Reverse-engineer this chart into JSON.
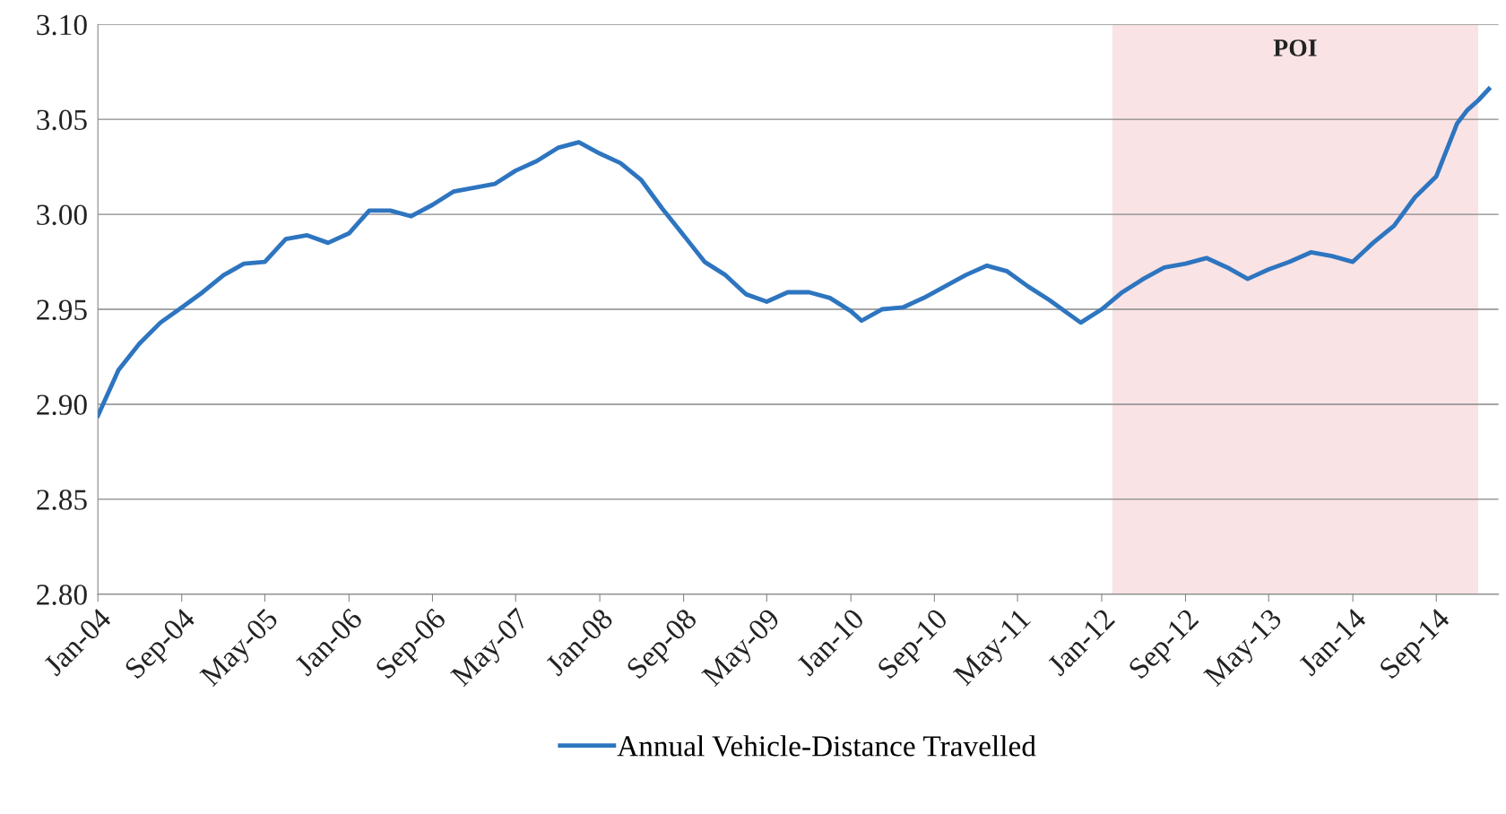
{
  "chart_data": {
    "type": "line",
    "x": [
      "2004-01",
      "2004-03",
      "2004-05",
      "2004-07",
      "2004-09",
      "2004-11",
      "2005-01",
      "2005-03",
      "2005-05",
      "2005-07",
      "2005-09",
      "2005-11",
      "2006-01",
      "2006-03",
      "2006-05",
      "2006-07",
      "2006-09",
      "2006-11",
      "2007-01",
      "2007-03",
      "2007-05",
      "2007-07",
      "2007-09",
      "2007-11",
      "2008-01",
      "2008-03",
      "2008-05",
      "2008-07",
      "2008-09",
      "2008-11",
      "2009-01",
      "2009-03",
      "2009-05",
      "2009-07",
      "2009-09",
      "2009-11",
      "2010-01",
      "2010-02",
      "2010-04",
      "2010-06",
      "2010-08",
      "2010-10",
      "2010-12",
      "2011-02",
      "2011-04",
      "2011-06",
      "2011-08",
      "2011-10",
      "2011-11",
      "2012-01",
      "2012-03",
      "2012-05",
      "2012-07",
      "2012-09",
      "2012-11",
      "2013-01",
      "2013-03",
      "2013-05",
      "2013-07",
      "2013-09",
      "2013-11",
      "2014-01",
      "2014-03",
      "2014-05",
      "2014-07",
      "2014-09",
      "2014-11",
      "2014-12",
      "2015-01",
      "2015-02"
    ],
    "series": [
      {
        "name": "Annual Vehicle-Distance Travelled",
        "color": "#2e75c0",
        "values": [
          2.894,
          2.918,
          2.932,
          2.943,
          2.951,
          2.959,
          2.968,
          2.974,
          2.975,
          2.987,
          2.989,
          2.985,
          2.99,
          3.002,
          3.002,
          2.999,
          3.005,
          3.012,
          3.014,
          3.016,
          3.023,
          3.028,
          3.035,
          3.038,
          3.032,
          3.027,
          3.018,
          3.003,
          2.989,
          2.975,
          2.968,
          2.958,
          2.954,
          2.959,
          2.959,
          2.956,
          2.949,
          2.944,
          2.95,
          2.951,
          2.956,
          2.962,
          2.968,
          2.973,
          2.97,
          2.962,
          2.955,
          2.947,
          2.943,
          2.95,
          2.959,
          2.966,
          2.972,
          2.974,
          2.977,
          2.972,
          2.966,
          2.971,
          2.975,
          2.98,
          2.978,
          2.975,
          2.985,
          2.994,
          3.009,
          3.02,
          3.048,
          3.055,
          3.06,
          3.066
        ]
      }
    ],
    "xlim": [
      "2004-01",
      "2015-03"
    ],
    "xticks": [
      {
        "value": "2004-01",
        "label": "Jan-04"
      },
      {
        "value": "2004-09",
        "label": "Sep-04"
      },
      {
        "value": "2005-05",
        "label": "May-05"
      },
      {
        "value": "2006-01",
        "label": "Jan-06"
      },
      {
        "value": "2006-09",
        "label": "Sep-06"
      },
      {
        "value": "2007-05",
        "label": "May-07"
      },
      {
        "value": "2008-01",
        "label": "Jan-08"
      },
      {
        "value": "2008-09",
        "label": "Sep-08"
      },
      {
        "value": "2009-05",
        "label": "May-09"
      },
      {
        "value": "2010-01",
        "label": "Jan-10"
      },
      {
        "value": "2010-09",
        "label": "Sep-10"
      },
      {
        "value": "2011-05",
        "label": "May-11"
      },
      {
        "value": "2012-01",
        "label": "Jan-12"
      },
      {
        "value": "2012-09",
        "label": "Sep-12"
      },
      {
        "value": "2013-05",
        "label": "May-13"
      },
      {
        "value": "2014-01",
        "label": "Jan-14"
      },
      {
        "value": "2014-09",
        "label": "Sep-14"
      }
    ],
    "ylim": [
      2.8,
      3.1
    ],
    "yticks": [
      {
        "value": 2.8,
        "label": "2.80"
      },
      {
        "value": 2.85,
        "label": "2.85"
      },
      {
        "value": 2.9,
        "label": "2.90"
      },
      {
        "value": 2.95,
        "label": "2.95"
      },
      {
        "value": 3.0,
        "label": "3.00"
      },
      {
        "value": 3.05,
        "label": "3.05"
      },
      {
        "value": 3.1,
        "label": "3.10"
      }
    ],
    "bands": [
      {
        "axis": "x",
        "from": "2012-02",
        "to": "2015-01",
        "label": "POI",
        "color": "#f9e3e5"
      }
    ],
    "grid": "y",
    "legend": "bottom",
    "line_style": "solid",
    "marker": "none"
  }
}
